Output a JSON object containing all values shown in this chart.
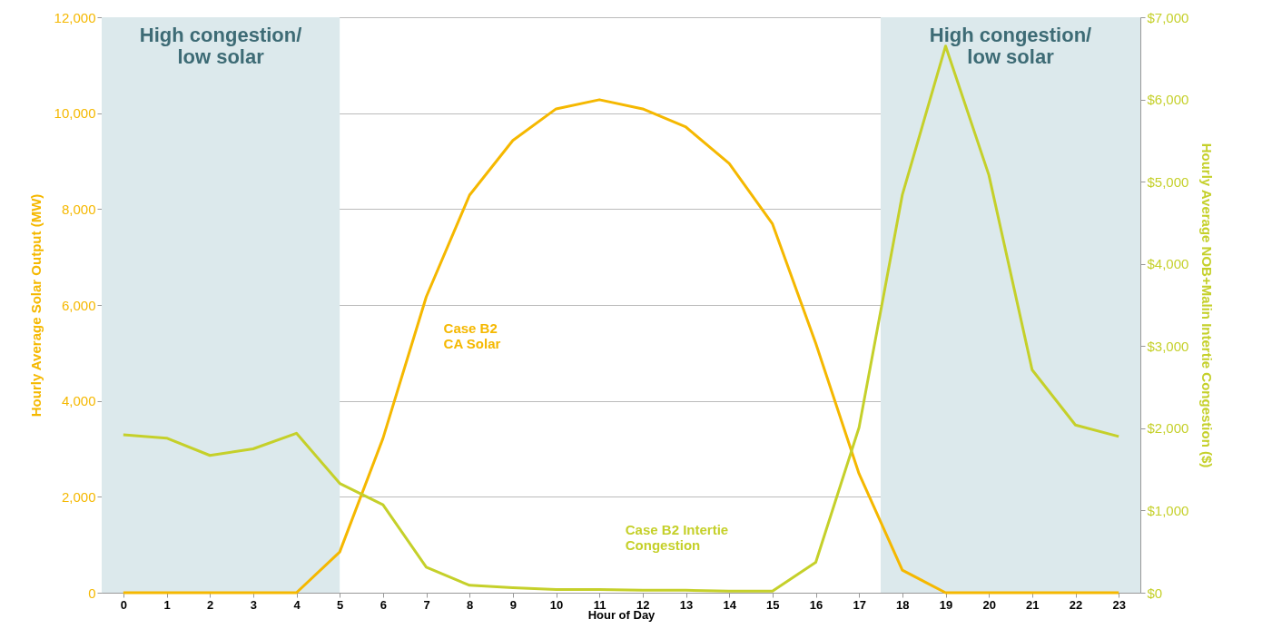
{
  "chart_data": {
    "type": "line",
    "xlabel": "Hour of Day",
    "ylabel": "Hourly Average Solar Output (MW)",
    "y2label": "Hourly Average NOB+Malin Intertie Congestion ($)",
    "x": [
      0,
      1,
      2,
      3,
      4,
      5,
      6,
      7,
      8,
      9,
      10,
      11,
      12,
      13,
      14,
      15,
      16,
      17,
      18,
      19,
      20,
      21,
      22,
      23
    ],
    "xlim": [
      -0.5,
      23.5
    ],
    "xticks": [
      0,
      1,
      2,
      3,
      4,
      5,
      6,
      7,
      8,
      9,
      10,
      11,
      12,
      13,
      14,
      15,
      16,
      17,
      18,
      19,
      20,
      21,
      22,
      23
    ],
    "ylim": [
      0,
      12000
    ],
    "yticks": [
      0,
      {
        "value": 2000,
        "label": "2,000"
      },
      {
        "value": 4000,
        "label": "4,000"
      },
      {
        "value": 6000,
        "label": "6,000"
      },
      {
        "value": 8000,
        "label": "8,000"
      },
      {
        "value": 10000,
        "label": "10,000"
      },
      {
        "value": 12000,
        "label": "12,000"
      }
    ],
    "y2lim": [
      0,
      7000
    ],
    "y2ticks": [
      {
        "value": 0,
        "label": "$0"
      },
      {
        "value": 1000,
        "label": "$1,000"
      },
      {
        "value": 2000,
        "label": "$2,000"
      },
      {
        "value": 3000,
        "label": "$3,000"
      },
      {
        "value": 4000,
        "label": "$4,000"
      },
      {
        "value": 5000,
        "label": "$5,000"
      },
      {
        "value": 6000,
        "label": "$6,000"
      },
      {
        "value": 7000,
        "label": "$7,000"
      }
    ],
    "series": [
      {
        "name": "Case B2\nCA Solar",
        "color": "#f5b800",
        "values": [
          0,
          0,
          0,
          0,
          0,
          850,
          3220,
          6170,
          8290,
          9430,
          10090,
          10280,
          10090,
          9710,
          8950,
          7690,
          5200,
          2480,
          470,
          0,
          0,
          0,
          0,
          0
        ]
      },
      {
        "name": "Case B2 Intertie\nCongestion",
        "color": "#c5d02a",
        "axis": "y2",
        "values": [
          1920,
          1880,
          1670,
          1750,
          1940,
          1330,
          1070,
          310,
          90,
          60,
          40,
          40,
          30,
          30,
          20,
          20,
          370,
          2010,
          4840,
          6650,
          5080,
          2710,
          2040,
          1900
        ]
      }
    ],
    "bands": [
      {
        "axis": "x",
        "from": -0.5,
        "to": 5,
        "label": "High congestion/\nlow solar",
        "color": "#dce9ec"
      },
      {
        "axis": "x",
        "from": 17.5,
        "to": 23.5,
        "label": "High congestion/\nlow solar",
        "color": "#dce9ec"
      }
    ],
    "grid": "y"
  }
}
